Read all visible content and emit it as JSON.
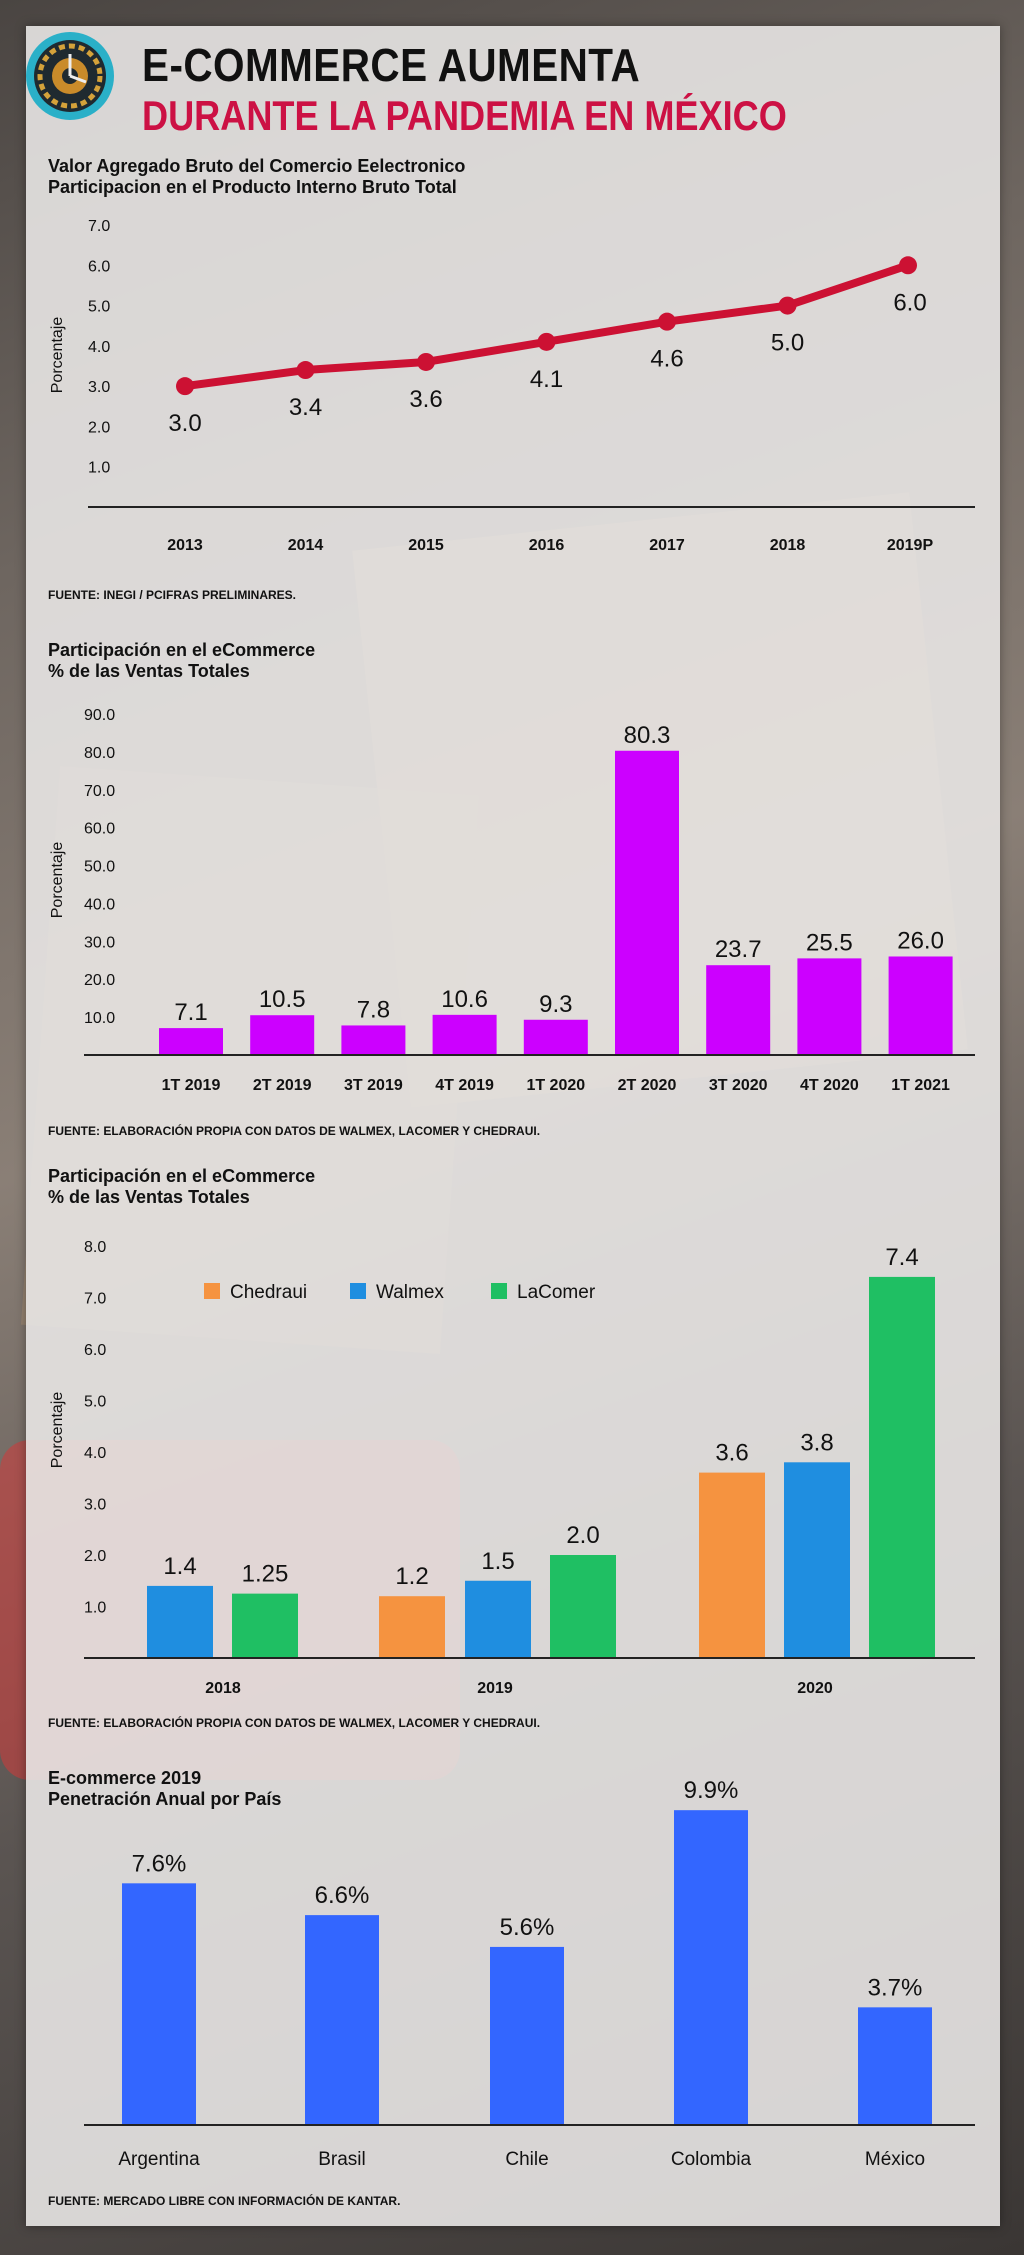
{
  "header": {
    "title": "E-COMMERCE AUMENTA",
    "subtitle": "DURANTE LA PANDEMIA EN MÉXICO",
    "title_color": "#111111",
    "subtitle_color": "#cc1144",
    "logo_icon": "clockwork-gear-badge-icon"
  },
  "chart_data": [
    {
      "type": "line",
      "title": "Valor Agregado Bruto del Comercio Eelectronico",
      "subtitle": "Participacion en el Producto Interno Bruto Total",
      "ylabel": "Porcentaje",
      "xlabel": "",
      "categories": [
        "2013",
        "2014",
        "2015",
        "2016",
        "2017",
        "2018",
        "2019P"
      ],
      "values": [
        3.0,
        3.4,
        3.6,
        4.1,
        4.6,
        5.0,
        6.0
      ],
      "value_labels": [
        "3.0",
        "3.4",
        "3.6",
        "4.1",
        "4.6",
        "5.0",
        "6.0"
      ],
      "yticks": [
        "1.0",
        "2.0",
        "3.0",
        "4.0",
        "5.0",
        "6.0",
        "7.0"
      ],
      "ylim": [
        0,
        7
      ],
      "color": "#cc1133",
      "grid": false,
      "source": "FUENTE:  INEGI / PCIFRAS PRELIMINARES."
    },
    {
      "type": "bar",
      "title": "Participación en el eCommerce",
      "subtitle": "% de las Ventas Totales",
      "ylabel": "Porcentaje",
      "xlabel": "",
      "categories": [
        "1T 2019",
        "2T 2019",
        "3T 2019",
        "4T 2019",
        "1T 2020",
        "2T 2020",
        "3T 2020",
        "4T 2020",
        "1T 2021"
      ],
      "values": [
        7.1,
        10.5,
        7.8,
        10.6,
        9.3,
        80.3,
        23.7,
        25.5,
        26.0
      ],
      "value_labels": [
        "7.1",
        "10.5",
        "7.8",
        "10.6",
        "9.3",
        "80.3",
        "23.7",
        "25.5",
        "26.0"
      ],
      "yticks": [
        "10.0",
        "20.0",
        "30.0",
        "40.0",
        "50.0",
        "60.0",
        "70.0",
        "80.0",
        "90.0"
      ],
      "ylim": [
        0,
        90
      ],
      "color": "#cc00ff",
      "grid": false,
      "source": "FUENTE: ELABORACIÓN PROPIA CON DATOS DE WALMEX, LACOMER Y CHEDRAUI."
    },
    {
      "type": "bar",
      "title": "Participación en el eCommerce",
      "subtitle": "% de las Ventas Totales",
      "ylabel": "Porcentaje",
      "xlabel": "",
      "categories": [
        "2018",
        "2019",
        "2020"
      ],
      "series": [
        {
          "name": "Chedraui",
          "color": "#f59340",
          "values": [
            null,
            1.2,
            3.6
          ],
          "value_labels": [
            "",
            "1.2",
            "3.6"
          ]
        },
        {
          "name": "Walmex",
          "color": "#1f8ee0",
          "values": [
            1.4,
            1.5,
            3.8
          ],
          "value_labels": [
            "1.4",
            "1.5",
            "3.8"
          ]
        },
        {
          "name": "LaComer",
          "color": "#1fbf63",
          "values": [
            1.25,
            2.0,
            7.4
          ],
          "value_labels": [
            "1.25",
            "2.0",
            "7.4"
          ]
        }
      ],
      "yticks": [
        "1.0",
        "2.0",
        "3.0",
        "4.0",
        "5.0",
        "6.0",
        "7.0",
        "8.0"
      ],
      "ylim": [
        0,
        8
      ],
      "legend_position": "top-left",
      "grid": false,
      "source": "FUENTE: ELABORACIÓN PROPIA CON DATOS DE WALMEX, LACOMER Y CHEDRAUI."
    },
    {
      "type": "bar",
      "title": "E-commerce 2019",
      "subtitle": "Penetración Anual por País",
      "ylabel": "",
      "xlabel": "",
      "categories": [
        "Argentina",
        "Brasil",
        "Chile",
        "Colombia",
        "México"
      ],
      "values": [
        7.6,
        6.6,
        5.6,
        9.9,
        3.7
      ],
      "value_labels": [
        "7.6%",
        "6.6%",
        "5.6%",
        "9.9%",
        "3.7%"
      ],
      "ylim": [
        0,
        10
      ],
      "color": "#3366ff",
      "grid": false,
      "source": "FUENTE: MERCADO LIBRE CON INFORMACIÓN DE KANTAR."
    }
  ]
}
